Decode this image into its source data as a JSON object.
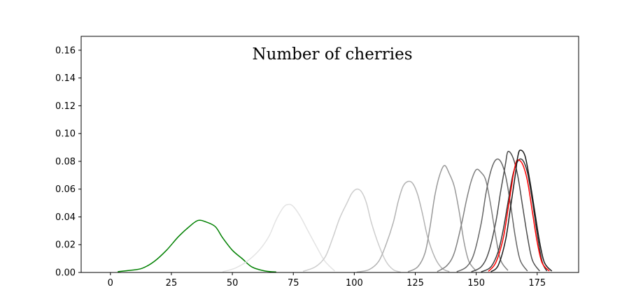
{
  "chart_data": {
    "type": "line",
    "title": "Number of cherries",
    "xlabel": "",
    "ylabel": "",
    "xlim": [
      -12,
      192
    ],
    "ylim": [
      0,
      0.17
    ],
    "xticks": [
      0,
      25,
      50,
      75,
      100,
      125,
      150,
      175
    ],
    "yticks": [
      0.0,
      0.02,
      0.04,
      0.06,
      0.08,
      0.1,
      0.12,
      0.14,
      0.16
    ],
    "ytick_labels": [
      "0.00",
      "0.02",
      "0.04",
      "0.06",
      "0.08",
      "0.10",
      "0.12",
      "0.14",
      "0.16"
    ],
    "grid": false,
    "series": [
      {
        "color": "#008000",
        "x": [
          3,
          8,
          13,
          18,
          23,
          28,
          33,
          36,
          39,
          43,
          46,
          50,
          54,
          58,
          63,
          68
        ],
        "y": [
          0.0006,
          0.0015,
          0.003,
          0.008,
          0.016,
          0.026,
          0.034,
          0.0375,
          0.0365,
          0.033,
          0.025,
          0.016,
          0.01,
          0.004,
          0.0012,
          0.0003
        ]
      },
      {
        "color": "#e3e3e3",
        "x": [
          46,
          51,
          56,
          61,
          65,
          68,
          71,
          73,
          75,
          78,
          81,
          85,
          88,
          92
        ],
        "y": [
          0.0005,
          0.003,
          0.008,
          0.016,
          0.026,
          0.038,
          0.047,
          0.049,
          0.0475,
          0.04,
          0.03,
          0.017,
          0.008,
          0.001
        ]
      },
      {
        "color": "#cdcdcd",
        "x": [
          79,
          84,
          88,
          91,
          94,
          97,
          99,
          101,
          103,
          105,
          107,
          110,
          113,
          116,
          119
        ],
        "y": [
          0.0008,
          0.004,
          0.011,
          0.024,
          0.039,
          0.05,
          0.057,
          0.06,
          0.058,
          0.05,
          0.036,
          0.02,
          0.008,
          0.002,
          0.0003
        ]
      },
      {
        "color": "#b2b2b2",
        "x": [
          101,
          106,
          110,
          113,
          116,
          118,
          120,
          122,
          124,
          126,
          128,
          130,
          133,
          136,
          139
        ],
        "y": [
          0.0003,
          0.002,
          0.008,
          0.02,
          0.036,
          0.051,
          0.062,
          0.0655,
          0.064,
          0.056,
          0.042,
          0.026,
          0.011,
          0.003,
          0.0006
        ]
      },
      {
        "color": "#999999",
        "x": [
          122,
          126,
          129,
          131,
          133,
          135,
          137,
          139,
          141,
          143,
          145,
          147,
          150
        ],
        "y": [
          0.0005,
          0.004,
          0.014,
          0.032,
          0.055,
          0.07,
          0.077,
          0.071,
          0.062,
          0.044,
          0.022,
          0.008,
          0.001
        ]
      },
      {
        "color": "#808080",
        "x": [
          134,
          138,
          141,
          144,
          146,
          148,
          150,
          152,
          154,
          156,
          158,
          160,
          163
        ],
        "y": [
          0.0006,
          0.005,
          0.014,
          0.035,
          0.052,
          0.066,
          0.074,
          0.072,
          0.066,
          0.048,
          0.026,
          0.009,
          0.0014
        ]
      },
      {
        "color": "#666666",
        "x": [
          142,
          146,
          149,
          152,
          154,
          156,
          158,
          160,
          162,
          164,
          166,
          168,
          171
        ],
        "y": [
          0.0005,
          0.004,
          0.013,
          0.035,
          0.057,
          0.073,
          0.081,
          0.08,
          0.07,
          0.05,
          0.026,
          0.009,
          0.001
        ]
      },
      {
        "color": "#4d4d4d",
        "x": [
          148,
          152,
          155,
          158,
          160,
          162,
          163,
          165,
          167,
          169,
          171,
          173,
          176
        ],
        "y": [
          0.0005,
          0.004,
          0.014,
          0.036,
          0.058,
          0.078,
          0.087,
          0.083,
          0.07,
          0.048,
          0.026,
          0.009,
          0.001
        ]
      },
      {
        "color": "#333333",
        "x": [
          152,
          156,
          159,
          161,
          163,
          165,
          167,
          169,
          171,
          173,
          175,
          177,
          179
        ],
        "y": [
          0.0004,
          0.004,
          0.015,
          0.03,
          0.05,
          0.07,
          0.08,
          0.081,
          0.072,
          0.052,
          0.028,
          0.008,
          0.001
        ]
      },
      {
        "color": "#ff0000",
        "x": [
          155,
          158,
          161,
          163,
          165,
          166,
          167,
          169,
          171,
          173,
          175,
          177,
          180
        ],
        "y": [
          0.0008,
          0.007,
          0.024,
          0.045,
          0.068,
          0.077,
          0.081,
          0.078,
          0.066,
          0.044,
          0.022,
          0.007,
          0.001
        ]
      },
      {
        "color": "#1a1a1a",
        "x": [
          156,
          159,
          162,
          164,
          166,
          167,
          168,
          170,
          172,
          174,
          176,
          178,
          181
        ],
        "y": [
          0.0005,
          0.005,
          0.023,
          0.046,
          0.07,
          0.083,
          0.088,
          0.084,
          0.066,
          0.044,
          0.022,
          0.007,
          0.001
        ]
      }
    ]
  }
}
